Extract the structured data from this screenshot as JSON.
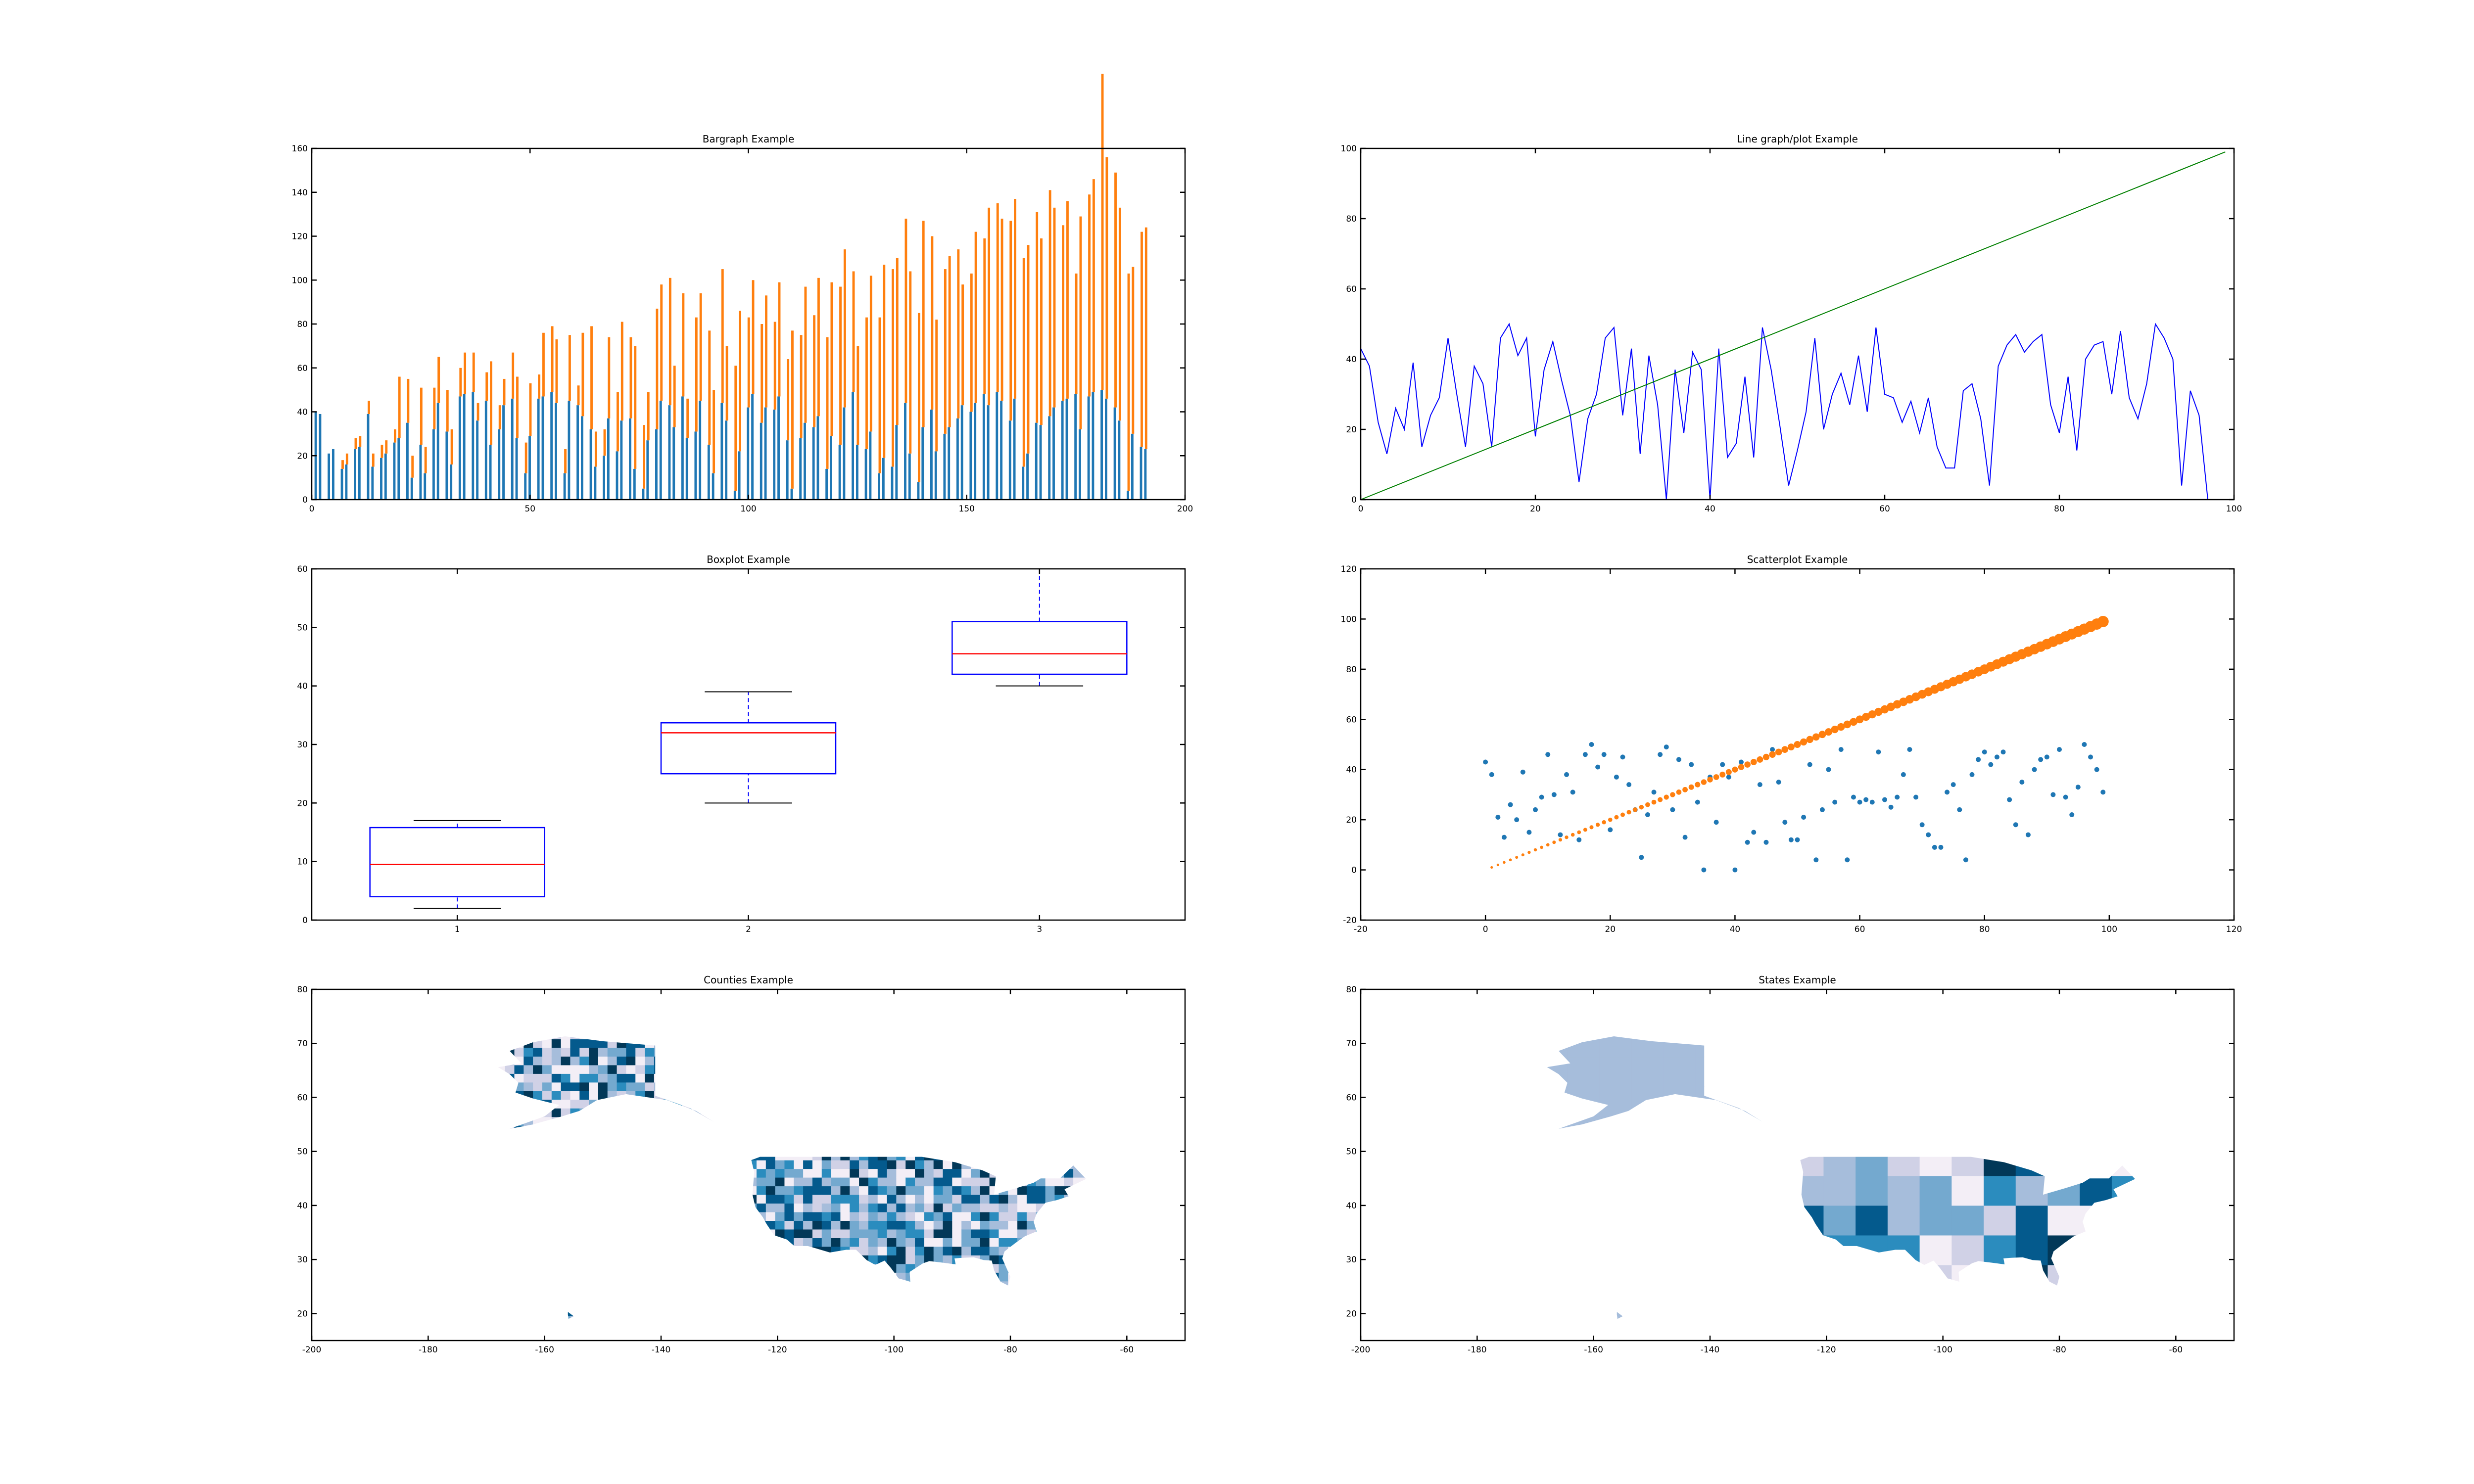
{
  "chart_data": [
    {
      "type": "bar",
      "title": "Bargraph Example",
      "xlim": [
        0,
        200
      ],
      "ylim": [
        0,
        160
      ],
      "xticks": [
        0,
        50,
        100,
        150,
        200
      ],
      "yticks": [
        0,
        20,
        40,
        60,
        80,
        100,
        120,
        140,
        160
      ],
      "series": [
        {
          "color": "#1f77b4",
          "values": [
            40,
            39,
            0,
            21,
            23,
            0,
            14,
            16,
            0,
            23,
            24,
            0,
            39,
            15,
            0,
            19,
            21,
            0,
            26,
            28,
            0,
            35,
            10,
            0,
            25,
            12,
            0,
            32,
            44,
            0,
            31,
            16,
            0,
            47,
            48,
            0,
            49,
            36,
            0,
            45,
            25,
            0,
            32,
            43,
            0,
            46,
            28,
            0,
            12,
            29,
            0,
            46,
            47,
            0,
            49,
            44,
            0,
            12,
            45,
            0,
            43,
            38,
            0,
            32,
            15,
            0,
            20,
            37,
            0,
            22,
            36,
            0,
            37,
            14,
            0,
            5,
            27,
            0,
            32,
            45,
            0,
            43,
            33,
            0,
            47,
            28,
            0,
            31,
            45,
            0,
            25,
            12,
            0,
            44,
            36,
            0,
            4,
            22,
            0,
            42,
            48,
            0,
            35,
            42,
            0,
            41,
            47,
            0,
            27,
            5,
            0,
            28,
            35,
            0,
            33,
            38,
            0,
            14,
            29,
            0,
            25,
            42,
            0,
            49,
            25,
            0,
            23,
            31,
            0,
            12,
            19,
            0,
            15,
            34,
            0,
            44,
            21,
            0,
            8,
            33,
            0,
            41,
            22,
            0,
            30,
            33,
            0,
            37,
            43,
            0,
            40,
            44,
            0,
            48,
            43,
            0,
            49,
            45,
            0,
            36,
            46,
            0,
            15,
            21,
            0,
            35,
            34,
            0,
            38,
            42,
            0,
            45,
            46,
            0,
            48,
            32,
            0,
            47,
            49,
            0,
            50,
            46,
            0,
            42,
            36,
            0,
            4,
            30,
            0,
            24,
            23
          ]
        },
        {
          "color": "#ff7f0e",
          "values": [
            0,
            0,
            0,
            0,
            0,
            0,
            4,
            5,
            0,
            5,
            5,
            0,
            6,
            6,
            0,
            6,
            6,
            0,
            6,
            28,
            0,
            20,
            10,
            0,
            26,
            12,
            0,
            19,
            21,
            0,
            19,
            16,
            0,
            13,
            19,
            0,
            18,
            8,
            0,
            13,
            38,
            0,
            11,
            12,
            0,
            21,
            28,
            0,
            14,
            24,
            0,
            11,
            29,
            0,
            30,
            29,
            0,
            11,
            30,
            0,
            9,
            38,
            0,
            47,
            16,
            0,
            12,
            37,
            0,
            27,
            45,
            0,
            37,
            56,
            0,
            29,
            22,
            0,
            55,
            53,
            0,
            58,
            28,
            0,
            47,
            18,
            0,
            52,
            49,
            0,
            52,
            38,
            0,
            61,
            34,
            0,
            57,
            64,
            0,
            41,
            52,
            0,
            45,
            51,
            0,
            40,
            52,
            0,
            37,
            72,
            0,
            47,
            62,
            0,
            51,
            63,
            0,
            60,
            70,
            0,
            72,
            72,
            0,
            55,
            45,
            0,
            60,
            71,
            0,
            71,
            88,
            0,
            90,
            76,
            0,
            84,
            83,
            0,
            77,
            94,
            0,
            79,
            60,
            0,
            75,
            78,
            0,
            77,
            55,
            0,
            63,
            78,
            0,
            71,
            90,
            0,
            86,
            83,
            0,
            91,
            91,
            0,
            95,
            95,
            0,
            96,
            85,
            0,
            103,
            91,
            0,
            80,
            90,
            0,
            55,
            97,
            0,
            92,
            97,
            0,
            144,
            110,
            0,
            107,
            97,
            0,
            99,
            76,
            0,
            98,
            101
          ]
        }
      ]
    },
    {
      "type": "line",
      "title": "Line graph/plot Example",
      "xlim": [
        0,
        100
      ],
      "ylim": [
        0,
        100
      ],
      "xticks": [
        0,
        20,
        40,
        60,
        80,
        100
      ],
      "yticks": [
        0,
        20,
        40,
        60,
        80,
        100
      ],
      "series": [
        {
          "color": "#0000ff",
          "x": [
            0,
            1,
            2,
            3,
            4,
            5,
            6,
            7,
            8,
            9,
            10,
            11,
            12,
            13,
            14,
            15,
            16,
            17,
            18,
            19,
            20,
            21,
            22,
            23,
            24,
            25,
            26,
            27,
            28,
            29,
            30,
            31,
            32,
            33,
            34,
            35,
            36,
            37,
            38,
            39,
            40,
            41,
            42,
            43,
            44,
            45,
            46,
            47,
            48,
            49,
            50,
            51,
            52,
            53,
            54,
            55,
            56,
            57,
            58,
            59,
            60,
            61,
            62,
            63,
            64,
            65,
            66,
            67,
            68,
            69,
            70,
            71,
            72,
            73,
            74,
            75,
            76,
            77,
            78,
            79,
            80,
            81,
            82,
            83,
            84,
            85,
            86,
            87,
            88,
            89,
            90,
            91,
            92,
            93,
            94,
            95,
            96,
            97,
            98,
            99
          ],
          "y": [
            43,
            38,
            22,
            13,
            26,
            20,
            39,
            15,
            24,
            29,
            46,
            30,
            15,
            38,
            33,
            15,
            46,
            50,
            41,
            46,
            18,
            37,
            45,
            34,
            24,
            5,
            23,
            30,
            46,
            49,
            24,
            43,
            13,
            41,
            27,
            0,
            37,
            19,
            42,
            37,
            0,
            43,
            12,
            16,
            35,
            12,
            49,
            37,
            21,
            4,
            14,
            25,
            46,
            20,
            30,
            36,
            27,
            41,
            25,
            49,
            30,
            29,
            22,
            28,
            19,
            29,
            15,
            9,
            9,
            31,
            33,
            23,
            4,
            38,
            44,
            47,
            42,
            45,
            47,
            27,
            19,
            35,
            14,
            40,
            44,
            45,
            30,
            48,
            29,
            23,
            33,
            50,
            46,
            40,
            4,
            31,
            24,
            0,
            0,
            0
          ]
        },
        {
          "color": "#008000",
          "x": [
            0,
            99
          ],
          "y": [
            0,
            99
          ]
        }
      ]
    },
    {
      "type": "box",
      "title": "Boxplot Example",
      "xlim": [
        0.5,
        3.5
      ],
      "ylim": [
        0,
        60
      ],
      "xticks": [
        1,
        2,
        3
      ],
      "yticks": [
        0,
        10,
        20,
        30,
        40,
        50,
        60
      ],
      "boxes": [
        {
          "x": 1,
          "whislo": 2,
          "q1": 4,
          "med": 9.5,
          "q3": 15.8,
          "whishi": 17
        },
        {
          "x": 2,
          "whislo": 20,
          "q1": 25,
          "med": 32,
          "q3": 33.7,
          "whishi": 39
        },
        {
          "x": 3,
          "whislo": 40,
          "q1": 42,
          "med": 45.5,
          "q3": 51,
          "whishi": 60
        }
      ]
    },
    {
      "type": "scatter",
      "title": "Scatterplot Example",
      "xlim": [
        -20,
        120
      ],
      "ylim": [
        -20,
        120
      ],
      "xticks": [
        -20,
        0,
        20,
        40,
        60,
        80,
        100,
        120
      ],
      "yticks": [
        -20,
        0,
        20,
        40,
        60,
        80,
        100,
        120
      ],
      "series": [
        {
          "color": "#1f77b4",
          "x": [
            0,
            1,
            2,
            3,
            4,
            5,
            6,
            7,
            8,
            9,
            10,
            11,
            12,
            13,
            14,
            15,
            16,
            17,
            18,
            19,
            20,
            21,
            22,
            23,
            24,
            25,
            26,
            27,
            28,
            29,
            30,
            31,
            32,
            33,
            34,
            35,
            36,
            37,
            38,
            39,
            40,
            41,
            42,
            43,
            44,
            45,
            46,
            47,
            48,
            49,
            50,
            51,
            52,
            53,
            54,
            55,
            56,
            57,
            58,
            59,
            60,
            61,
            62,
            63,
            64,
            65,
            66,
            67,
            68,
            69,
            70,
            71,
            72,
            73,
            74,
            75,
            76,
            77,
            78,
            79,
            80,
            81,
            82,
            83,
            84,
            85,
            86,
            87,
            88,
            89,
            90,
            91,
            92,
            93,
            94,
            95,
            96,
            97,
            98,
            99
          ],
          "y": [
            43,
            38,
            21,
            13,
            26,
            20,
            39,
            15,
            24,
            29,
            46,
            30,
            14,
            38,
            31,
            12,
            46,
            50,
            41,
            46,
            16,
            37,
            45,
            34,
            24,
            5,
            22,
            31,
            46,
            49,
            24,
            44,
            13,
            42,
            27,
            0,
            37,
            19,
            42,
            37,
            0,
            43,
            11,
            15,
            34,
            11,
            48,
            35,
            19,
            12,
            12,
            21,
            42,
            4,
            24,
            40,
            27,
            48,
            4,
            29,
            27,
            28,
            27,
            47,
            28,
            25,
            29,
            38,
            48,
            29,
            18,
            14,
            9,
            9,
            31,
            34,
            24,
            4,
            38,
            44,
            47,
            42,
            45,
            47,
            28,
            18,
            35,
            14,
            40,
            44,
            45,
            30,
            48,
            29,
            22,
            33,
            50,
            45,
            40,
            31
          ]
        },
        {
          "color": "#ff7f0e",
          "x": [
            1,
            2,
            3,
            4,
            5,
            6,
            7,
            8,
            9,
            10,
            11,
            12,
            13,
            14,
            15,
            16,
            17,
            18,
            19,
            20,
            21,
            22,
            23,
            24,
            25,
            26,
            27,
            28,
            29,
            30,
            31,
            32,
            33,
            34,
            35,
            36,
            37,
            38,
            39,
            40,
            41,
            42,
            43,
            44,
            45,
            46,
            47,
            48,
            49,
            50,
            51,
            52,
            53,
            54,
            55,
            56,
            57,
            58,
            59,
            60,
            61,
            62,
            63,
            64,
            65,
            66,
            67,
            68,
            69,
            70,
            71,
            72,
            73,
            74,
            75,
            76,
            77,
            78,
            79,
            80,
            81,
            82,
            83,
            84,
            85,
            86,
            87,
            88,
            89,
            90,
            91,
            92,
            93,
            94,
            95,
            96,
            97,
            98,
            99
          ],
          "y": [
            1,
            2,
            3,
            4,
            5,
            6,
            7,
            8,
            9,
            10,
            11,
            12,
            13,
            14,
            15,
            16,
            17,
            18,
            19,
            20,
            21,
            22,
            23,
            24,
            25,
            26,
            27,
            28,
            29,
            30,
            31,
            32,
            33,
            34,
            35,
            36,
            37,
            38,
            39,
            40,
            41,
            42,
            43,
            44,
            45,
            46,
            47,
            48,
            49,
            50,
            51,
            52,
            53,
            54,
            55,
            56,
            57,
            58,
            59,
            60,
            61,
            62,
            63,
            64,
            65,
            66,
            67,
            68,
            69,
            70,
            71,
            72,
            73,
            74,
            75,
            76,
            77,
            78,
            79,
            80,
            81,
            82,
            83,
            84,
            85,
            86,
            87,
            88,
            89,
            90,
            91,
            92,
            93,
            94,
            95,
            96,
            97,
            98,
            99
          ]
        }
      ]
    },
    {
      "type": "map",
      "title": "Counties Example",
      "xlim": [
        -200,
        -50
      ],
      "ylim": [
        15,
        80
      ],
      "xticks": [
        -200,
        -180,
        -160,
        -140,
        -120,
        -100,
        -80,
        -60
      ],
      "yticks": [
        20,
        30,
        40,
        50,
        60,
        70,
        80
      ],
      "palette": [
        "#f3eef6",
        "#d0d1e6",
        "#a6bddb",
        "#74a9cf",
        "#2b8cbe",
        "#045a8d",
        "#023858"
      ]
    },
    {
      "type": "map",
      "title": "States Example",
      "xlim": [
        -200,
        -50
      ],
      "ylim": [
        15,
        80
      ],
      "xticks": [
        -200,
        -180,
        -160,
        -140,
        -120,
        -100,
        -80,
        -60
      ],
      "yticks": [
        20,
        30,
        40,
        50,
        60,
        70,
        80
      ],
      "palette": [
        "#f3eef6",
        "#d0d1e6",
        "#a6bddb",
        "#74a9cf",
        "#2b8cbe",
        "#045a8d",
        "#023858"
      ]
    }
  ]
}
